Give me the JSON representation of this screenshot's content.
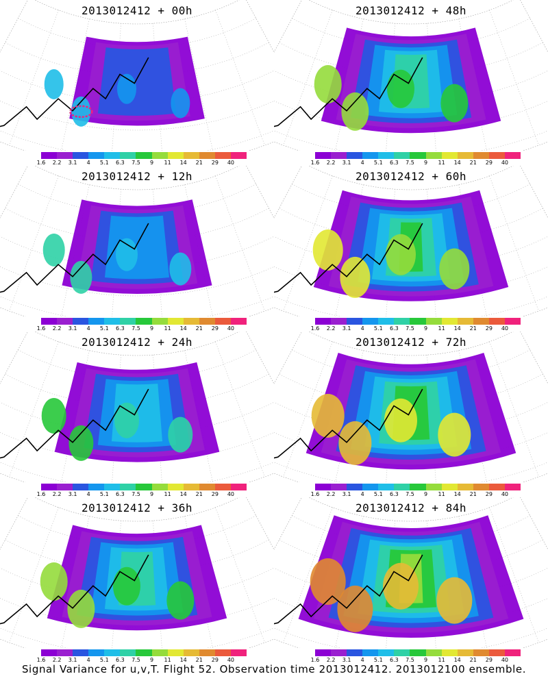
{
  "panels": [
    {
      "title": "2013012412 + 00h",
      "level": 0
    },
    {
      "title": "2013012412 + 48h",
      "level": 3
    },
    {
      "title": "2013012412 + 12h",
      "level": 1
    },
    {
      "title": "2013012412 + 60h",
      "level": 4
    },
    {
      "title": "2013012412 + 24h",
      "level": 2
    },
    {
      "title": "2013012412 + 72h",
      "level": 5
    },
    {
      "title": "2013012412 + 36h",
      "level": 3
    },
    {
      "title": "2013012412 + 84h",
      "level": 6
    }
  ],
  "colorbar": {
    "labels": [
      "1.6",
      "2.2",
      "3.1",
      "4",
      "5.1",
      "6.3",
      "7.5",
      "9",
      "11",
      "14",
      "21",
      "29",
      "40"
    ],
    "colors": [
      "#8c00d4",
      "#9a1fd0",
      "#2a55e0",
      "#1496ee",
      "#1fbee8",
      "#2fd1a6",
      "#27c83a",
      "#95dc3c",
      "#e2e833",
      "#e6ba35",
      "#e08a30",
      "#eb5a3c",
      "#f0227c"
    ]
  },
  "footer": "Signal Variance for u,v,T. Flight 52. Observation time 2013012412. 2013012100 ensemble."
}
